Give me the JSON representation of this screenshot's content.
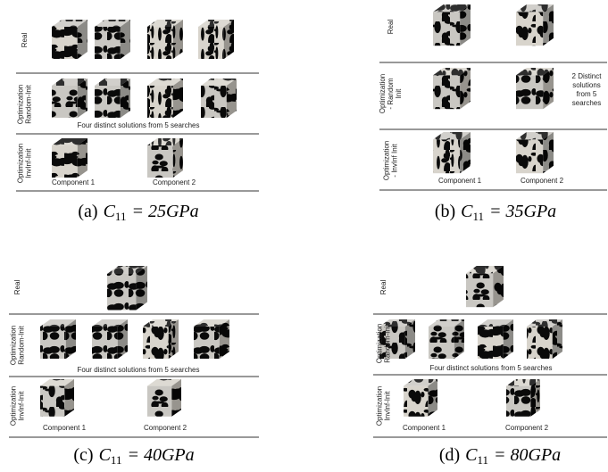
{
  "panels": [
    {
      "rows": [
        {
          "label": [
            "Real"
          ]
        },
        {
          "label": [
            "Optimization",
            "Random-Init"
          ],
          "note": [
            "Four distinct solutions from 5 searches"
          ]
        },
        {
          "label": [
            "Optimization",
            "InvInf-Init"
          ],
          "items": [
            "Component 1",
            "Component 2"
          ]
        }
      ],
      "caption": {
        "tag": "(a)",
        "symbol": "C",
        "subscript": "11",
        "rest": "= 25GPa"
      }
    },
    {
      "rows": [
        {
          "label": [
            "Real"
          ]
        },
        {
          "label": [
            "Optimization",
            "- Random",
            "Init"
          ],
          "note": [
            "2 Distinct",
            "solutions",
            "from 5",
            "searches"
          ]
        },
        {
          "label": [
            "Optimization",
            "- InvInf Init"
          ],
          "items": [
            "Component 1",
            "Component 2"
          ]
        }
      ],
      "caption": {
        "tag": "(b)",
        "symbol": "C",
        "subscript": "11",
        "rest": "= 35GPa"
      }
    },
    {
      "rows": [
        {
          "label": [
            "Real"
          ]
        },
        {
          "label": [
            "Optimization",
            "Random-Init"
          ],
          "note": [
            "Four distinct solutions from 5 searches"
          ]
        },
        {
          "label": [
            "Optimization",
            "InvInf-Init"
          ],
          "items": [
            "Component 1",
            "Component 2"
          ]
        }
      ],
      "caption": {
        "tag": "(c)",
        "symbol": "C",
        "subscript": "11",
        "rest": "= 40GPa"
      }
    },
    {
      "rows": [
        {
          "label": [
            "Real"
          ]
        },
        {
          "label": [
            "Optimization",
            "Random-Init"
          ],
          "note": [
            "Four distinct solutions from 5 searches"
          ]
        },
        {
          "label": [
            "Optimization",
            "InvInf-Init"
          ],
          "items": [
            "Component 1",
            "Component 2"
          ]
        }
      ],
      "caption": {
        "tag": "(d)",
        "symbol": "C",
        "subscript": "11",
        "rest": "= 80GPa"
      }
    }
  ]
}
